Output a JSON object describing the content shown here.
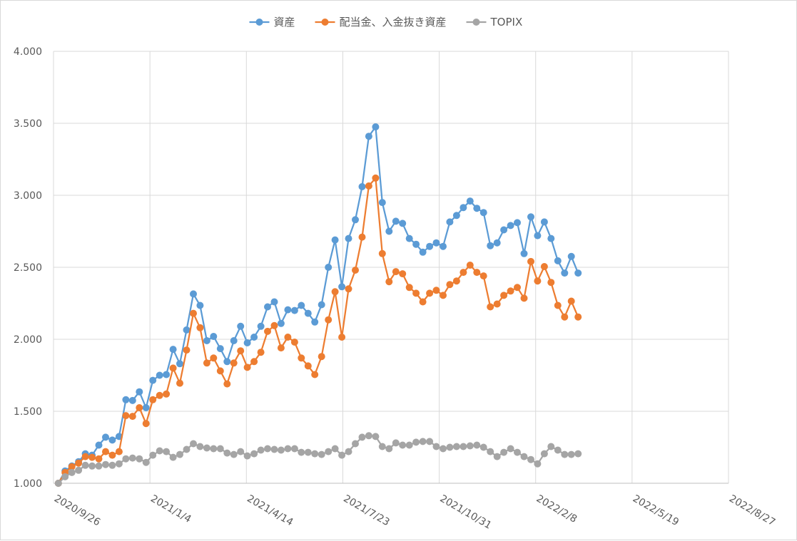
{
  "chart_data": {
    "type": "line",
    "title": "",
    "xlabel": "",
    "ylabel": "",
    "ylim": [
      1.0,
      4.0
    ],
    "y_ticks": [
      "1.000",
      "1.500",
      "2.000",
      "2.500",
      "3.000",
      "3.500",
      "4.000"
    ],
    "y_tick_values": [
      1.0,
      1.5,
      2.0,
      2.5,
      3.0,
      3.5,
      4.0
    ],
    "x_ticks": [
      "2020/9/26",
      "2021/1/4",
      "2021/4/14",
      "2021/7/23",
      "2021/10/31",
      "2022/2/8",
      "2022/5/19",
      "2022/8/27"
    ],
    "x_start": "2020/9/26",
    "x_end": "2022/8/27",
    "x_interval": "weekly",
    "grid": true,
    "legend_position": "top",
    "series": [
      {
        "name": "資産",
        "color": "#5b9bd5",
        "values": [
          1.0,
          1.085,
          1.12,
          1.15,
          1.205,
          1.195,
          1.265,
          1.32,
          1.3,
          1.325,
          1.58,
          1.575,
          1.635,
          1.525,
          1.715,
          1.75,
          1.755,
          1.93,
          1.83,
          2.065,
          2.315,
          2.235,
          1.99,
          2.02,
          1.935,
          1.845,
          1.99,
          2.09,
          1.975,
          2.015,
          2.09,
          2.225,
          2.26,
          2.11,
          2.205,
          2.2,
          2.235,
          2.18,
          2.12,
          2.24,
          2.5,
          2.69,
          2.365,
          2.7,
          2.83,
          3.06,
          3.41,
          3.475,
          2.95,
          2.75,
          2.82,
          2.805,
          2.7,
          2.66,
          2.605,
          2.645,
          2.67,
          2.645,
          2.815,
          2.86,
          2.915,
          2.96,
          2.91,
          2.88,
          2.65,
          2.67,
          2.76,
          2.79,
          2.81,
          2.595,
          2.85,
          2.72,
          2.815,
          2.7,
          2.545,
          2.46,
          2.575,
          2.46
        ]
      },
      {
        "name": "配当金、入金抜き資産",
        "color": "#ed7d31",
        "values": [
          1.0,
          1.075,
          1.115,
          1.14,
          1.185,
          1.18,
          1.17,
          1.22,
          1.195,
          1.22,
          1.47,
          1.465,
          1.525,
          1.415,
          1.58,
          1.61,
          1.62,
          1.8,
          1.695,
          1.925,
          2.18,
          2.08,
          1.835,
          1.87,
          1.78,
          1.69,
          1.835,
          1.92,
          1.805,
          1.845,
          1.91,
          2.055,
          2.095,
          1.94,
          2.015,
          1.98,
          1.87,
          1.815,
          1.755,
          1.88,
          2.135,
          2.33,
          2.015,
          2.35,
          2.48,
          2.71,
          3.065,
          3.12,
          2.595,
          2.4,
          2.47,
          2.455,
          2.36,
          2.32,
          2.26,
          2.32,
          2.34,
          2.305,
          2.38,
          2.405,
          2.465,
          2.515,
          2.465,
          2.44,
          2.225,
          2.245,
          2.305,
          2.335,
          2.36,
          2.285,
          2.54,
          2.405,
          2.505,
          2.395,
          2.235,
          2.155,
          2.265,
          2.155
        ]
      },
      {
        "name": "TOPIX",
        "color": "#a5a5a5",
        "values": [
          1.0,
          1.045,
          1.075,
          1.09,
          1.125,
          1.12,
          1.12,
          1.13,
          1.125,
          1.135,
          1.17,
          1.175,
          1.17,
          1.145,
          1.195,
          1.225,
          1.22,
          1.18,
          1.2,
          1.235,
          1.275,
          1.255,
          1.245,
          1.24,
          1.24,
          1.21,
          1.2,
          1.22,
          1.19,
          1.205,
          1.23,
          1.24,
          1.235,
          1.23,
          1.24,
          1.24,
          1.215,
          1.215,
          1.205,
          1.2,
          1.22,
          1.24,
          1.195,
          1.22,
          1.275,
          1.32,
          1.33,
          1.325,
          1.255,
          1.24,
          1.28,
          1.265,
          1.265,
          1.285,
          1.29,
          1.29,
          1.255,
          1.24,
          1.25,
          1.255,
          1.255,
          1.26,
          1.265,
          1.25,
          1.22,
          1.185,
          1.215,
          1.24,
          1.215,
          1.185,
          1.165,
          1.135,
          1.205,
          1.255,
          1.23,
          1.2,
          1.2,
          1.205
        ]
      }
    ]
  }
}
